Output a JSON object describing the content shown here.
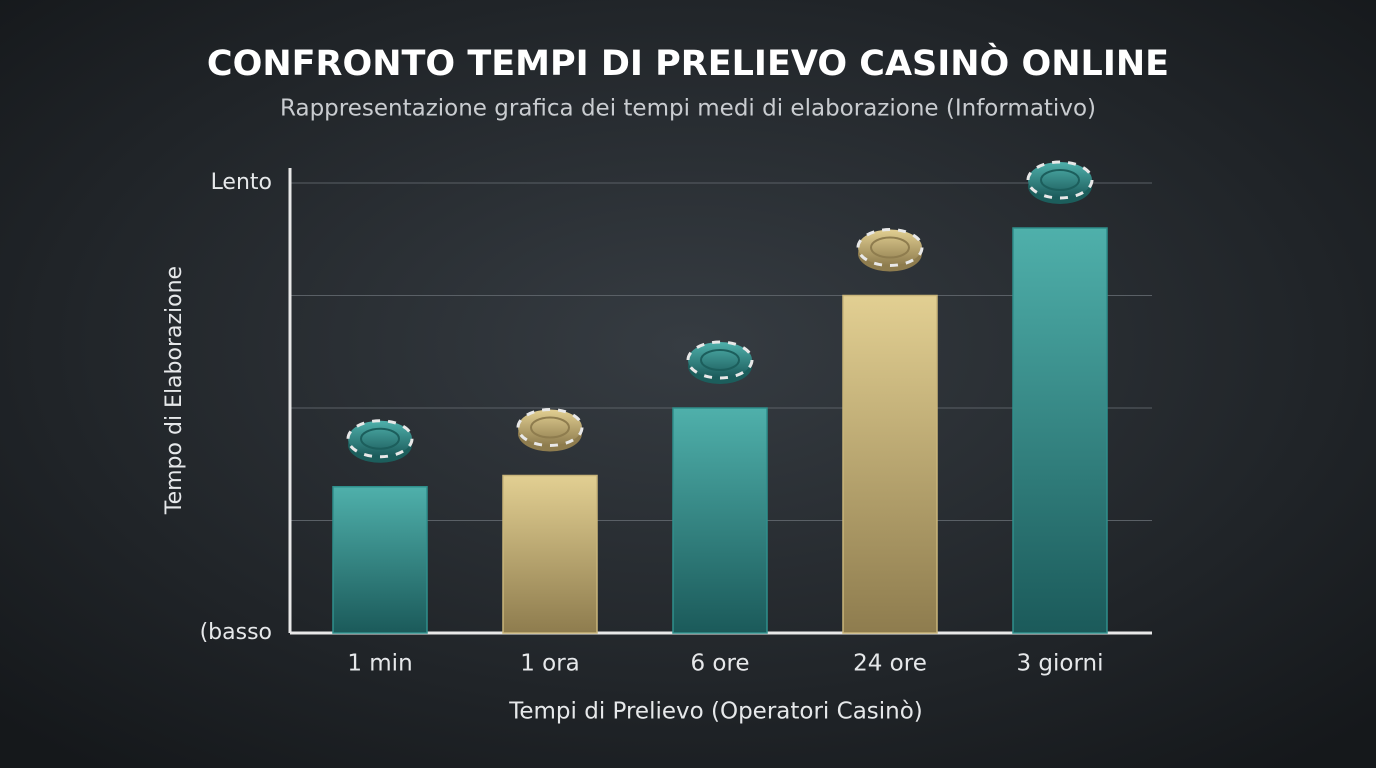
{
  "chart_data": {
    "type": "bar",
    "title": "CONFRONTO TEMPI DI PRELIEVO CASINÒ ONLINE",
    "subtitle": "Rappresentazione grafica dei tempi medi di elaborazione (Informativo)",
    "y_label": "Tempo di Elaborazione",
    "x_label": "Tempi di Prelievo (Operatori Casinò)",
    "categories": [
      "1 min",
      "1 ora",
      "6 ore",
      "24 ore",
      "3 giorni"
    ],
    "values": [
      1.3,
      1.4,
      2.0,
      3.0,
      3.6
    ],
    "colors": [
      "#2f8f8c",
      "#c9b57a",
      "#2f8f8c",
      "#c9b57a",
      "#2f8f8c"
    ],
    "ylim": [
      0,
      4
    ],
    "yticks": [
      {
        "value": 0,
        "label": "(basso"
      },
      {
        "value": 1,
        "label": null
      },
      {
        "value": 2,
        "label": null
      },
      {
        "value": 3,
        "label": null
      },
      {
        "value": 4,
        "label": "Lento"
      }
    ],
    "grid": true
  }
}
